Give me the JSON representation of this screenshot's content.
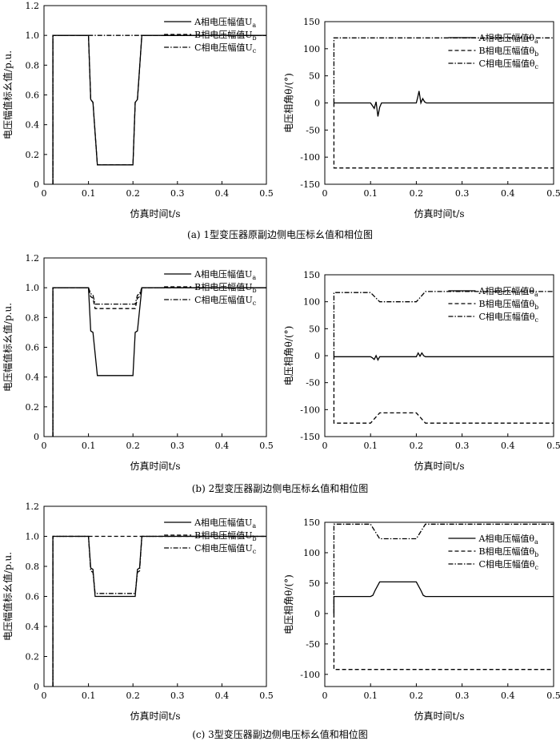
{
  "chart_data": [
    {
      "type": "line",
      "panel": "a-left",
      "xlabel": "仿真时间t/s",
      "ylabel": "电压幅值标幺值/p.u.",
      "xlim": [
        0,
        0.5
      ],
      "ylim": [
        0,
        1.2
      ],
      "xticks": [
        "0",
        "0.1",
        "0.2",
        "0.3",
        "0.4",
        "0.5"
      ],
      "yticks": [
        "0",
        "0.2",
        "0.4",
        "0.6",
        "0.8",
        "1.0",
        "1.2"
      ],
      "legend_position": "top-right",
      "series": [
        {
          "name": "A相电压幅值U",
          "sub": "a",
          "style": "solid",
          "x": [
            0.02,
            0.02,
            0.1,
            0.105,
            0.11,
            0.12,
            0.2,
            0.205,
            0.21,
            0.22,
            0.5
          ],
          "y": [
            0,
            1.0,
            1.0,
            0.57,
            0.55,
            0.13,
            0.13,
            0.55,
            0.57,
            1.0,
            1.0
          ]
        },
        {
          "name": "B相电压幅值U",
          "sub": "b",
          "style": "dashed",
          "x": [
            0.02,
            0.02,
            0.1,
            0.105,
            0.11,
            0.12,
            0.2,
            0.205,
            0.21,
            0.22,
            0.5
          ],
          "y": [
            0,
            1.0,
            1.0,
            0.57,
            0.55,
            0.13,
            0.13,
            0.55,
            0.57,
            1.0,
            1.0
          ]
        },
        {
          "name": "C相电压幅值U",
          "sub": "c",
          "style": "dashdot",
          "x": [
            0.02,
            0.02,
            0.5
          ],
          "y": [
            0,
            1.0,
            1.0
          ]
        }
      ]
    },
    {
      "type": "line",
      "panel": "a-right",
      "xlabel": "仿真时间t/s",
      "ylabel": "电压相角θ/(°)",
      "xlim": [
        0,
        0.5
      ],
      "ylim": [
        -150,
        150
      ],
      "xticks": [
        "0",
        "0.1",
        "0.2",
        "0.3",
        "0.4",
        "0.5"
      ],
      "yticks": [
        "-150",
        "-100",
        "-50",
        "0",
        "50",
        "100",
        "150"
      ],
      "legend_position": "top-right",
      "series": [
        {
          "name": "A相电压幅值θ",
          "sub": "a",
          "style": "solid",
          "x": [
            0.02,
            0.1,
            0.104,
            0.108,
            0.112,
            0.116,
            0.12,
            0.124,
            0.2,
            0.203,
            0.206,
            0.21,
            0.214,
            0.218,
            0.222,
            0.5
          ],
          "y": [
            0,
            0,
            -5,
            -10,
            2,
            -25,
            -8,
            0,
            0,
            10,
            22,
            0,
            8,
            2,
            0,
            0
          ]
        },
        {
          "name": "B相电压幅值θ",
          "sub": "b",
          "style": "dashed",
          "x": [
            0.02,
            0.02,
            0.5
          ],
          "y": [
            0,
            -120,
            -120
          ]
        },
        {
          "name": "C相电压幅值θ",
          "sub": "c",
          "style": "dashdot",
          "x": [
            0.02,
            0.02,
            0.5
          ],
          "y": [
            0,
            120,
            120
          ]
        }
      ]
    },
    {
      "type": "line",
      "panel": "b-left",
      "xlabel": "仿真时间t/s",
      "ylabel": "电压幅值标幺值/p.u.",
      "xlim": [
        0,
        0.5
      ],
      "ylim": [
        0,
        1.2
      ],
      "xticks": [
        "0",
        "0.1",
        "0.2",
        "0.3",
        "0.4",
        "0.5"
      ],
      "yticks": [
        "0",
        "0.2",
        "0.4",
        "0.6",
        "0.8",
        "1.0",
        "1.2"
      ],
      "legend_position": "top-right",
      "series": [
        {
          "name": "A相电压幅值U",
          "sub": "a",
          "style": "solid",
          "x": [
            0.02,
            0.02,
            0.1,
            0.105,
            0.11,
            0.12,
            0.2,
            0.205,
            0.21,
            0.22,
            0.5
          ],
          "y": [
            0,
            1.0,
            1.0,
            0.71,
            0.7,
            0.41,
            0.41,
            0.7,
            0.71,
            1.0,
            1.0
          ]
        },
        {
          "name": "B相电压幅值U",
          "sub": "b",
          "style": "dashed",
          "x": [
            0.02,
            0.02,
            0.1,
            0.105,
            0.11,
            0.115,
            0.2,
            0.205,
            0.21,
            0.215,
            0.22,
            0.5
          ],
          "y": [
            0,
            1.0,
            1.0,
            0.94,
            0.93,
            0.86,
            0.86,
            0.86,
            0.93,
            0.94,
            1.0,
            1.0
          ]
        },
        {
          "name": "C相电压幅值U",
          "sub": "c",
          "style": "dashdot",
          "x": [
            0.02,
            0.02,
            0.1,
            0.105,
            0.11,
            0.115,
            0.2,
            0.205,
            0.21,
            0.215,
            0.22,
            0.5
          ],
          "y": [
            0,
            1.0,
            1.0,
            0.96,
            0.95,
            0.89,
            0.89,
            0.89,
            0.95,
            0.96,
            1.0,
            1.0
          ]
        }
      ]
    },
    {
      "type": "line",
      "panel": "b-right",
      "xlabel": "仿真时间t/s",
      "ylabel": "电压相角θ/(°)",
      "xlim": [
        0,
        0.5
      ],
      "ylim": [
        -150,
        150
      ],
      "xticks": [
        "0",
        "0.1",
        "0.2",
        "0.3",
        "0.4",
        "0.5"
      ],
      "yticks": [
        "-150",
        "-100",
        "-50",
        "0",
        "50",
        "100",
        "150"
      ],
      "legend_position": "top-right",
      "series": [
        {
          "name": "A相电压幅值θ",
          "sub": "a",
          "style": "solid",
          "x": [
            0.02,
            0.1,
            0.104,
            0.108,
            0.112,
            0.116,
            0.12,
            0.2,
            0.204,
            0.208,
            0.212,
            0.216,
            0.22,
            0.5
          ],
          "y": [
            -2,
            -2,
            -4,
            -7,
            0,
            -8,
            -2,
            -2,
            5,
            -1,
            5,
            0,
            -2,
            -2
          ]
        },
        {
          "name": "B相电压幅值θ",
          "sub": "b",
          "style": "dashed",
          "x": [
            0.02,
            0.02,
            0.1,
            0.12,
            0.2,
            0.22,
            0.5
          ],
          "y": [
            0,
            -125,
            -125,
            -106,
            -106,
            -125,
            -125
          ]
        },
        {
          "name": "C相电压幅值θ",
          "sub": "c",
          "style": "dashdot",
          "x": [
            0.02,
            0.02,
            0.1,
            0.12,
            0.2,
            0.22,
            0.5
          ],
          "y": [
            0,
            117,
            117,
            100,
            100,
            119,
            119
          ]
        }
      ]
    },
    {
      "type": "line",
      "panel": "c-left",
      "xlabel": "仿真时间t/s",
      "ylabel": "电压幅值标幺值/p.u.",
      "xlim": [
        0,
        0.5
      ],
      "ylim": [
        0,
        1.2
      ],
      "xticks": [
        "0",
        "0.1",
        "0.2",
        "0.3",
        "0.4",
        "0.5"
      ],
      "yticks": [
        "0",
        "0.2",
        "0.4",
        "0.6",
        "0.8",
        "1.0",
        "1.2"
      ],
      "legend_position": "top-right",
      "series": [
        {
          "name": "A相电压幅值U",
          "sub": "a",
          "style": "solid",
          "x": [
            0.02,
            0.02,
            0.1,
            0.105,
            0.11,
            0.115,
            0.2,
            0.205,
            0.21,
            0.215,
            0.22,
            0.5
          ],
          "y": [
            0,
            1.0,
            1.0,
            0.79,
            0.78,
            0.6,
            0.6,
            0.6,
            0.78,
            0.79,
            1.0,
            1.0
          ]
        },
        {
          "name": "B相电压幅值U",
          "sub": "b",
          "style": "dashed",
          "x": [
            0.02,
            0.02,
            0.5
          ],
          "y": [
            0,
            1.0,
            1.0
          ]
        },
        {
          "name": "C相电压幅值U",
          "sub": "c",
          "style": "dashdot",
          "x": [
            0.02,
            0.02,
            0.1,
            0.105,
            0.11,
            0.115,
            0.2,
            0.205,
            0.21,
            0.215,
            0.22,
            0.5
          ],
          "y": [
            0,
            1.0,
            1.0,
            0.77,
            0.76,
            0.62,
            0.62,
            0.62,
            0.76,
            0.77,
            1.0,
            1.0
          ]
        }
      ]
    },
    {
      "type": "line",
      "panel": "c-right",
      "xlabel": "仿真时间t/s",
      "ylabel": "电压相角θ/(°)",
      "xlim": [
        0,
        0.5
      ],
      "ylim": [
        -120,
        150
      ],
      "xticks": [
        "0",
        "0.1",
        "0.2",
        "0.3",
        "0.4",
        "0.5"
      ],
      "yticks": [
        "-100",
        "-50",
        "0",
        "50",
        "100",
        "150"
      ],
      "legend_position": "top-right",
      "series": [
        {
          "name": "A相电压幅值θ",
          "sub": "a",
          "style": "solid",
          "x": [
            0.02,
            0.02,
            0.1,
            0.105,
            0.11,
            0.12,
            0.2,
            0.21,
            0.215,
            0.22,
            0.5
          ],
          "y": [
            0,
            28,
            28,
            30,
            38,
            52,
            52,
            38,
            30,
            28,
            28
          ]
        },
        {
          "name": "B相电压幅值θ",
          "sub": "b",
          "style": "dashed",
          "x": [
            0.02,
            0.02,
            0.5
          ],
          "y": [
            0,
            -92,
            -92
          ]
        },
        {
          "name": "C相电压幅值θ",
          "sub": "c",
          "style": "dashdot",
          "x": [
            0.02,
            0.02,
            0.1,
            0.12,
            0.2,
            0.22,
            0.5
          ],
          "y": [
            0,
            147,
            147,
            123,
            123,
            147,
            147
          ]
        }
      ]
    }
  ],
  "captions": {
    "a": "(a) 1型变压器原副边侧电压标幺值和相位图",
    "b": "(b) 2型变压器副边侧电压标幺值和相位图",
    "c": "(c) 3型变压器副边侧电压标幺值和相位图"
  }
}
